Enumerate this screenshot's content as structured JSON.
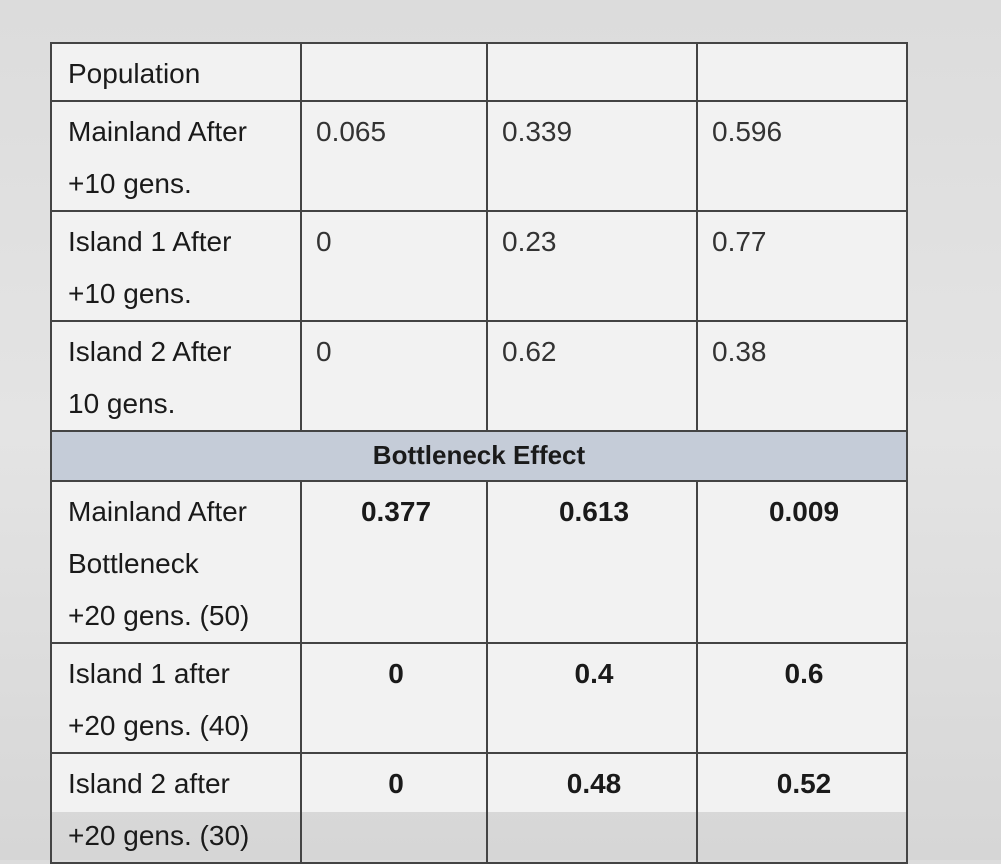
{
  "header": {
    "label": "Population",
    "cols": [
      "",
      "",
      ""
    ]
  },
  "drift_rows": [
    {
      "label_lines": [
        "Mainland After",
        "+10 gens."
      ],
      "values": [
        "0.065",
        "0.339",
        "0.596"
      ]
    },
    {
      "label_lines": [
        "Island 1 After",
        "+10 gens."
      ],
      "values": [
        "0",
        "0.23",
        "0.77"
      ]
    },
    {
      "label_lines": [
        "Island 2 After",
        "10 gens."
      ],
      "values": [
        "0",
        "0.62",
        "0.38"
      ]
    }
  ],
  "section_title": "Bottleneck Effect",
  "bottleneck_rows": [
    {
      "label_lines": [
        "Mainland After",
        "Bottleneck",
        "+20 gens. (50)"
      ],
      "values": [
        "0.377",
        "0.613",
        "0.009"
      ]
    },
    {
      "label_lines": [
        "Island 1 after",
        "+20 gens. (40)"
      ],
      "values": [
        "0",
        "0.4",
        "0.6"
      ]
    },
    {
      "label_lines": [
        "Island 2 after",
        "+20 gens. (30)"
      ],
      "values": [
        "0",
        "0.48",
        "0.52"
      ]
    }
  ]
}
